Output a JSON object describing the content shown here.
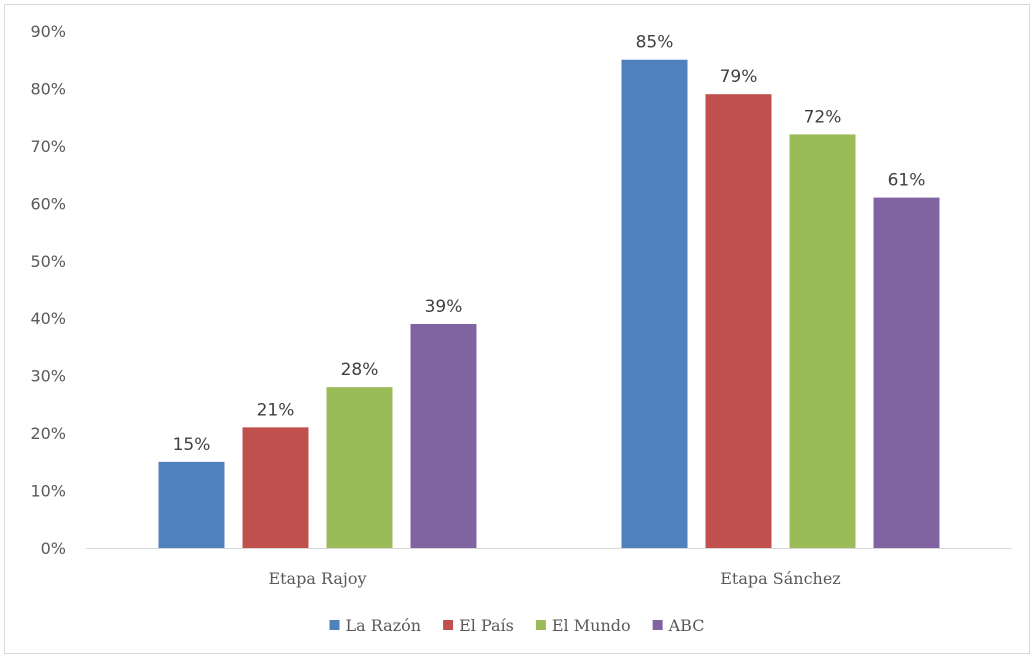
{
  "chart_data": {
    "type": "bar",
    "categories": [
      "Etapa Rajoy",
      "Etapa Sánchez"
    ],
    "series": [
      {
        "name": "La Razón",
        "values": [
          15,
          85
        ],
        "labels": [
          "15%",
          "85%"
        ]
      },
      {
        "name": "El País",
        "values": [
          21,
          79
        ],
        "labels": [
          "21%",
          "79%"
        ]
      },
      {
        "name": "El Mundo",
        "values": [
          28,
          72
        ],
        "labels": [
          "28%",
          "72%"
        ]
      },
      {
        "name": "ABC",
        "values": [
          39,
          61
        ],
        "labels": [
          "39%",
          "61%"
        ]
      }
    ],
    "yticks": [
      "0%",
      "10%",
      "20%",
      "30%",
      "40%",
      "50%",
      "60%",
      "70%",
      "80%",
      "90%"
    ],
    "ylim": [
      0,
      90
    ],
    "grid": false,
    "legend_position": "bottom",
    "colors": [
      "#4f81bd",
      "#c0504d",
      "#9bbb59",
      "#8064a2"
    ]
  }
}
